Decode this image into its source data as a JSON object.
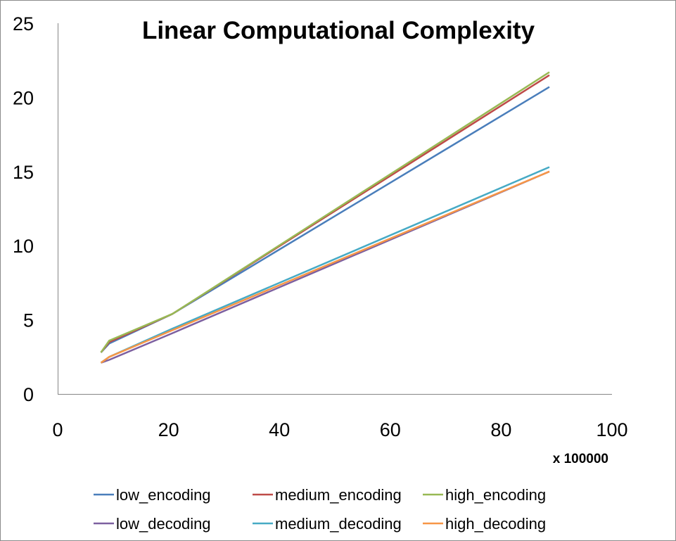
{
  "chart_data": {
    "type": "line",
    "title": "Linear Computational Complexity",
    "x_unit_label": "x 100000",
    "xlim": [
      0,
      100
    ],
    "ylim": [
      0,
      25
    ],
    "x_ticks": [
      0,
      20,
      40,
      60,
      80,
      100
    ],
    "y_ticks": [
      0,
      5,
      10,
      15,
      20,
      25
    ],
    "grid": false,
    "legend_position": "bottom",
    "series": [
      {
        "name": "low_encoding",
        "color": "#4a7ebb",
        "points": [
          [
            7.8,
            2.8
          ],
          [
            9.3,
            3.4
          ],
          [
            20.7,
            5.4
          ],
          [
            88.7,
            20.7
          ]
        ]
      },
      {
        "name": "medium_encoding",
        "color": "#be4b48",
        "points": [
          [
            7.8,
            2.8
          ],
          [
            9.3,
            3.5
          ],
          [
            20.7,
            5.4
          ],
          [
            88.7,
            21.5
          ]
        ]
      },
      {
        "name": "high_encoding",
        "color": "#98b954",
        "points": [
          [
            7.8,
            2.8
          ],
          [
            9.3,
            3.6
          ],
          [
            20.7,
            5.4
          ],
          [
            88.7,
            21.7
          ]
        ]
      },
      {
        "name": "low_decoding",
        "color": "#7d60a0",
        "points": [
          [
            7.8,
            2.1
          ],
          [
            9.3,
            2.3
          ],
          [
            20.7,
            4.1
          ],
          [
            88.7,
            15.0
          ]
        ]
      },
      {
        "name": "medium_decoding",
        "color": "#46aac5",
        "points": [
          [
            7.8,
            2.1
          ],
          [
            9.3,
            2.5
          ],
          [
            20.7,
            4.4
          ],
          [
            88.7,
            15.3
          ]
        ]
      },
      {
        "name": "high_decoding",
        "color": "#f79646",
        "points": [
          [
            7.8,
            2.1
          ],
          [
            9.3,
            2.5
          ],
          [
            20.7,
            4.3
          ],
          [
            88.7,
            15.0
          ]
        ]
      }
    ]
  }
}
